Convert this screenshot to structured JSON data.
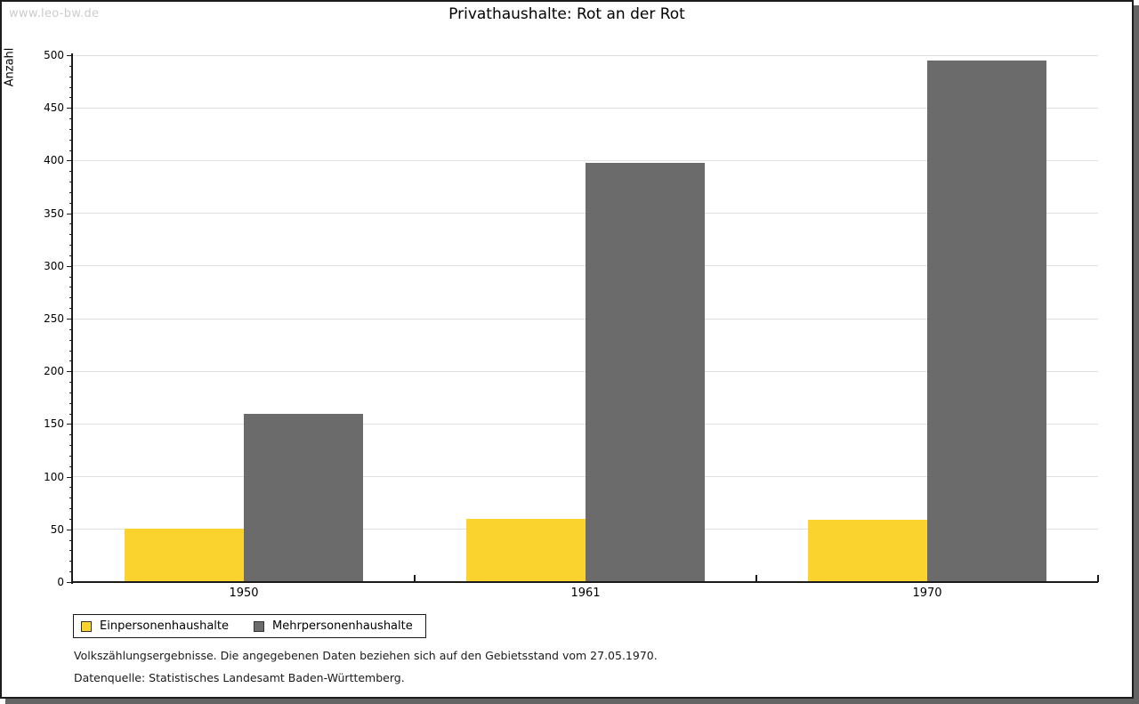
{
  "watermark": "www.leo-bw.de",
  "chart_data": {
    "type": "bar",
    "title": "Privathaushalte: Rot an der Rot",
    "ylabel": "Anzahl",
    "xlabel": "",
    "categories": [
      "1950",
      "1961",
      "1970"
    ],
    "series": [
      {
        "name": "Einpersonenhaushalte",
        "color": "#fbd32e",
        "values": [
          51,
          60,
          59
        ]
      },
      {
        "name": "Mehrpersonenhaushalte",
        "color": "#6b6b6b",
        "values": [
          160,
          398,
          495
        ]
      }
    ],
    "ylim": [
      0,
      500
    ],
    "ytick_major": 50,
    "ytick_minor": 10,
    "grid": true,
    "legend_position": "bottom-left"
  },
  "footnotes": [
    "Volkszählungsergebnisse. Die angegebenen Daten beziehen sich auf den Gebietsstand vom 27.05.1970.",
    "Datenquelle: Statistisches Landesamt Baden-Württemberg."
  ],
  "colors": {
    "grid": "#e0e0e0",
    "axis": "#1a1a1a",
    "watermark": "#cccccc",
    "frame_shadow": "#646464"
  }
}
